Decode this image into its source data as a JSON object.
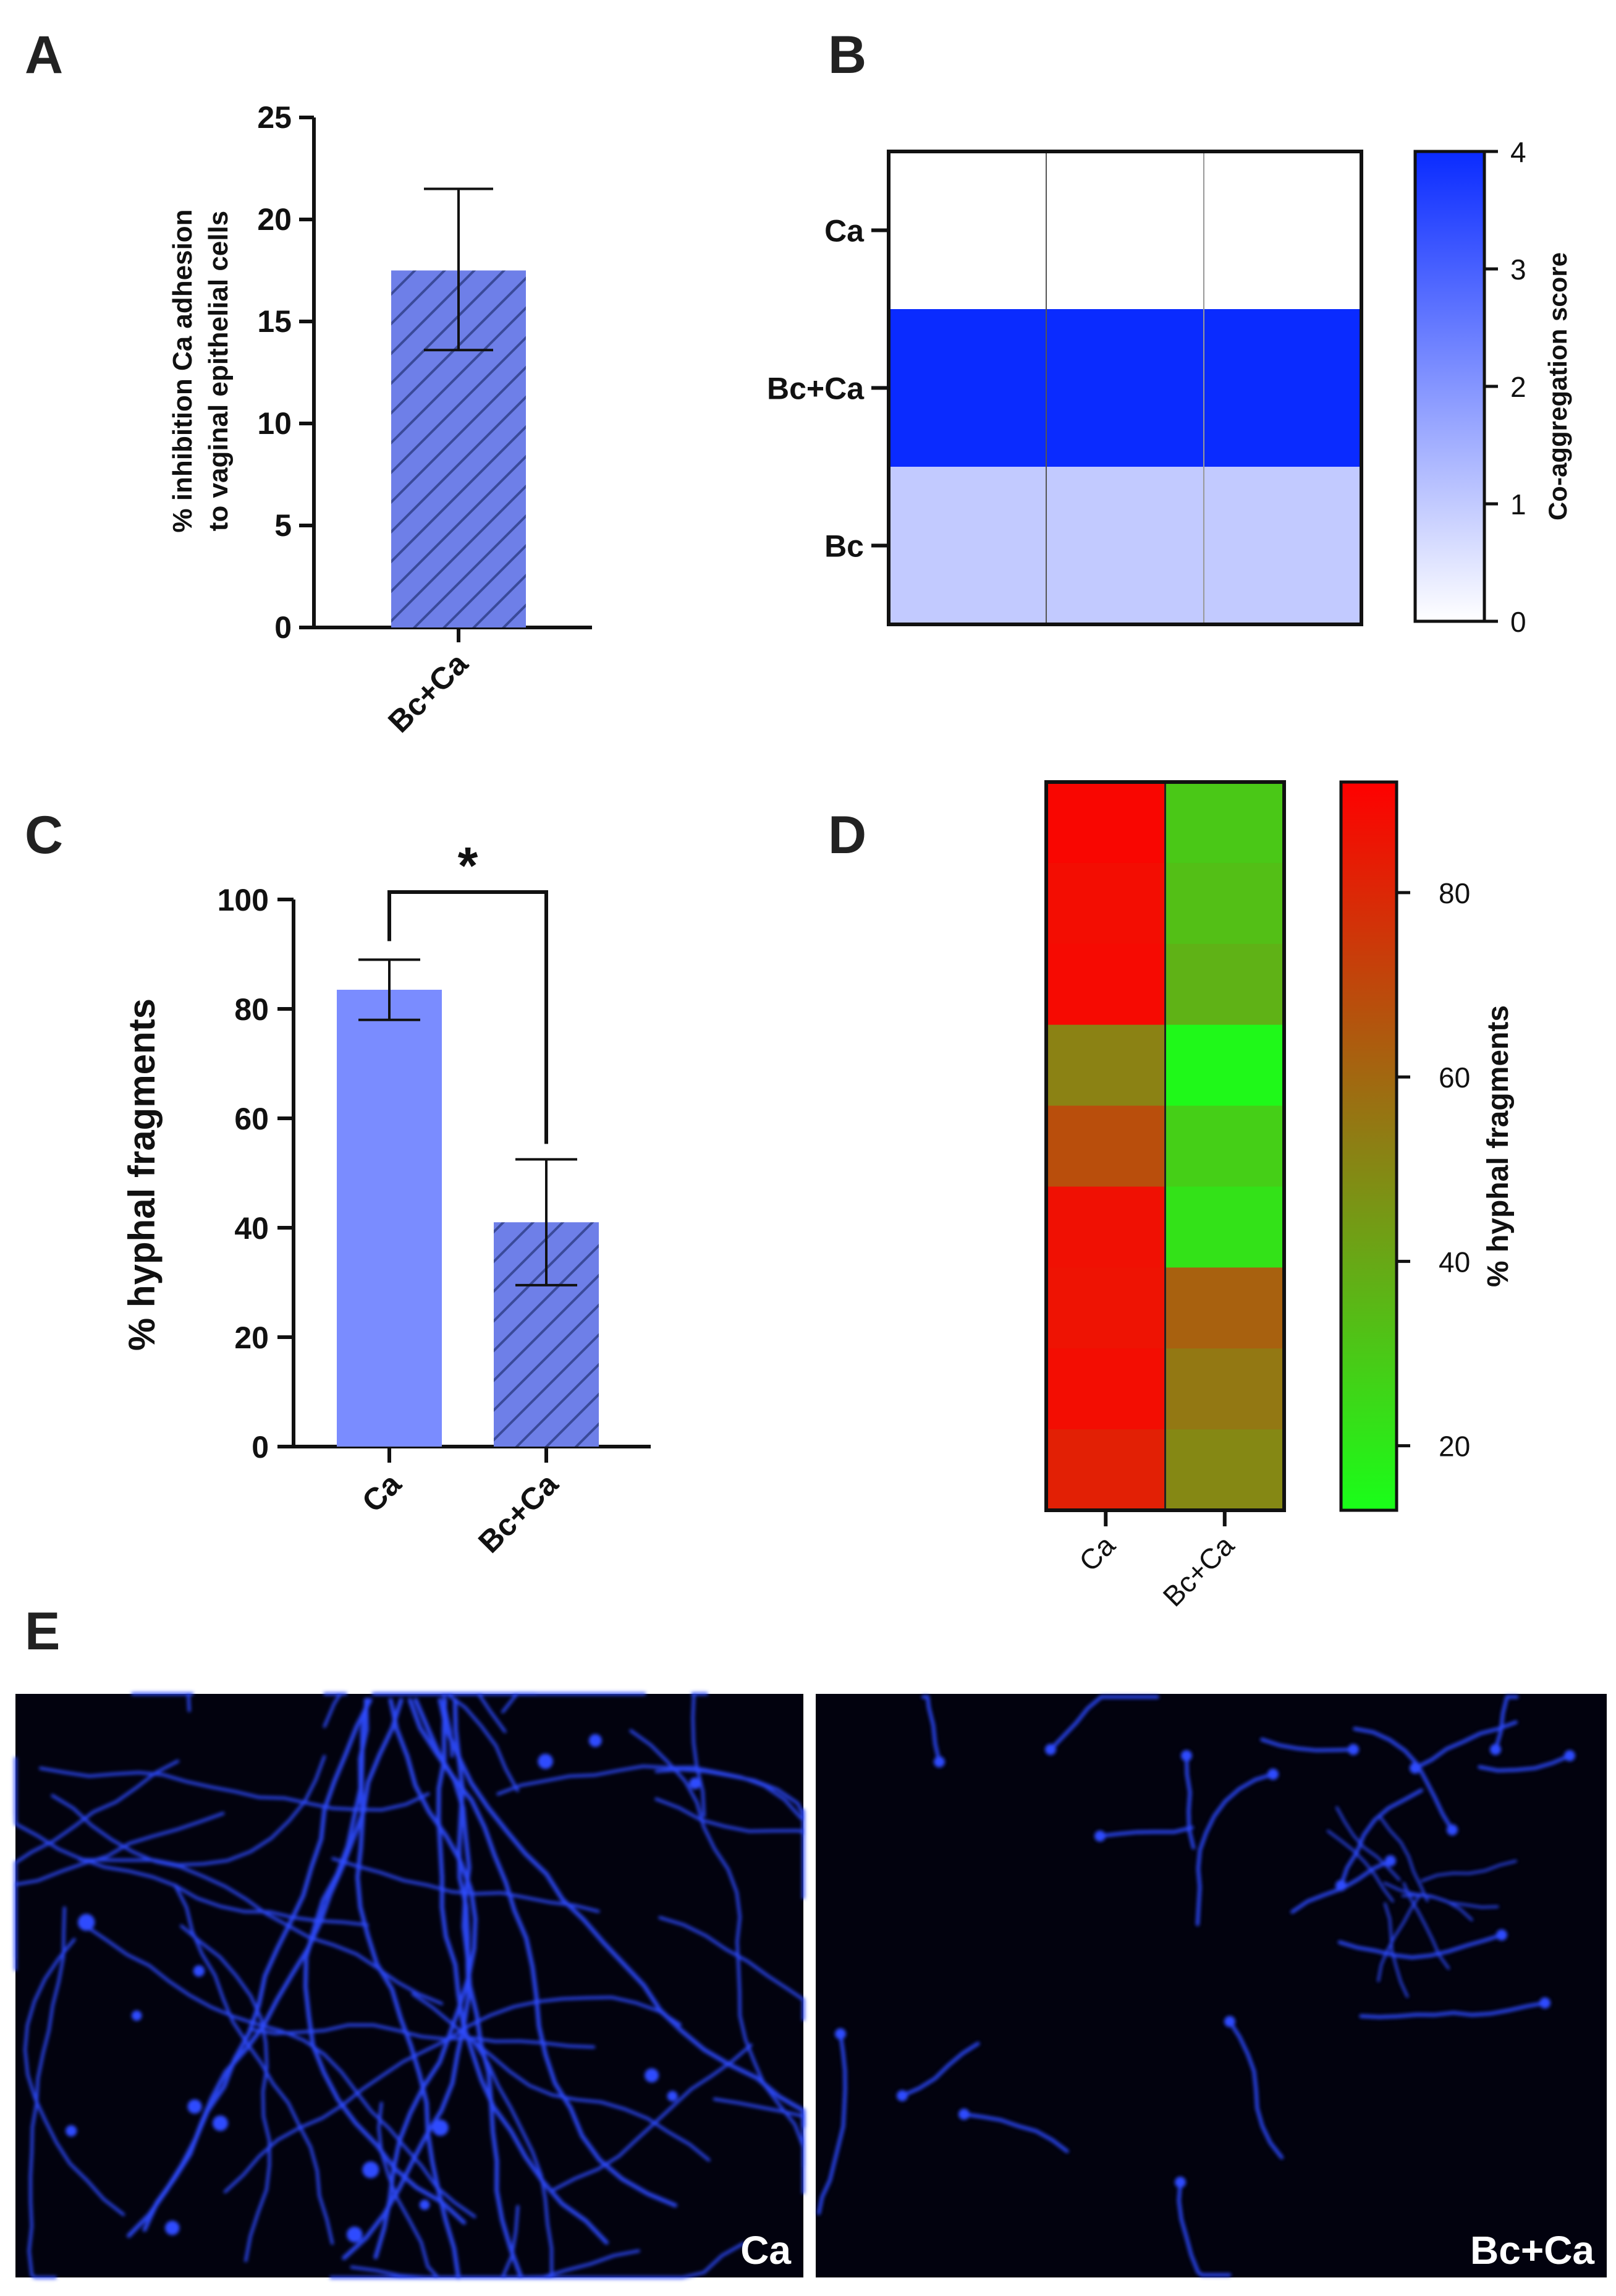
{
  "panel_letters": {
    "a": "A",
    "b": "B",
    "c": "C",
    "d": "D",
    "e": "E"
  },
  "colors": {
    "bar_fill": "#7A8CFF",
    "hatch_fill": "#6E7FE8",
    "hatch_line": "#3A4A9A",
    "heat_max_blue": "#0A2BFF",
    "heat_green": "#19FF19",
    "heat_red": "#FF0000",
    "micro_bg": "#02020E",
    "hyphae": "#2F4BFF"
  },
  "chart_data": [
    {
      "panel": "A",
      "type": "bar",
      "categories": [
        "Bc+Ca"
      ],
      "values": [
        17.5
      ],
      "error": [
        [
          13.6,
          21.5
        ]
      ],
      "ylabel_line1": "% inhibition Ca adhesion",
      "ylabel_line2": "to vaginal epithelial cells",
      "ylim": [
        0,
        25
      ],
      "yticks": [
        "0",
        "5",
        "10",
        "15",
        "20",
        "25"
      ],
      "pattern": "hatched"
    },
    {
      "panel": "B",
      "type": "heatmap",
      "rows": [
        "Ca",
        "Bc+Ca",
        "Bc"
      ],
      "columns": 3,
      "values": [
        [
          0,
          0,
          0
        ],
        [
          4,
          4,
          4
        ],
        [
          1,
          1,
          1
        ]
      ],
      "colorbar_label": "Co-aggregation score",
      "colorbar_range": [
        0,
        4
      ],
      "colorbar_ticks": [
        "0",
        "1",
        "2",
        "3",
        "4"
      ],
      "colormap": [
        "#FFFFFF",
        "#0A2BFF"
      ]
    },
    {
      "panel": "C",
      "type": "bar",
      "categories": [
        "Ca",
        "Bc+Ca"
      ],
      "values": [
        83.5,
        41.0
      ],
      "error": [
        [
          78.0,
          89.0
        ],
        [
          29.5,
          52.5
        ]
      ],
      "ylabel": "% hyphal fragments",
      "ylim": [
        0,
        100
      ],
      "yticks": [
        "0",
        "20",
        "40",
        "60",
        "80",
        "100"
      ],
      "patterns": [
        "solid",
        "hatched"
      ],
      "significance": "*"
    },
    {
      "panel": "D",
      "type": "heatmap",
      "columns": [
        "Ca",
        "Bc+Ca"
      ],
      "values": [
        [
          90,
          30
        ],
        [
          88,
          33
        ],
        [
          89,
          37
        ],
        [
          52,
          15
        ],
        [
          68,
          28
        ],
        [
          87,
          22
        ],
        [
          86,
          62
        ],
        [
          88,
          55
        ],
        [
          82,
          50
        ]
      ],
      "colorbar_label": "% hyphal fragments",
      "colorbar_range": [
        13,
        92
      ],
      "colorbar_ticks": [
        "20",
        "40",
        "60",
        "80"
      ],
      "colormap": [
        "#19FF19",
        "#FF0000"
      ]
    }
  ],
  "micrographs": {
    "left_label": "Ca",
    "right_label": "Bc+Ca"
  }
}
